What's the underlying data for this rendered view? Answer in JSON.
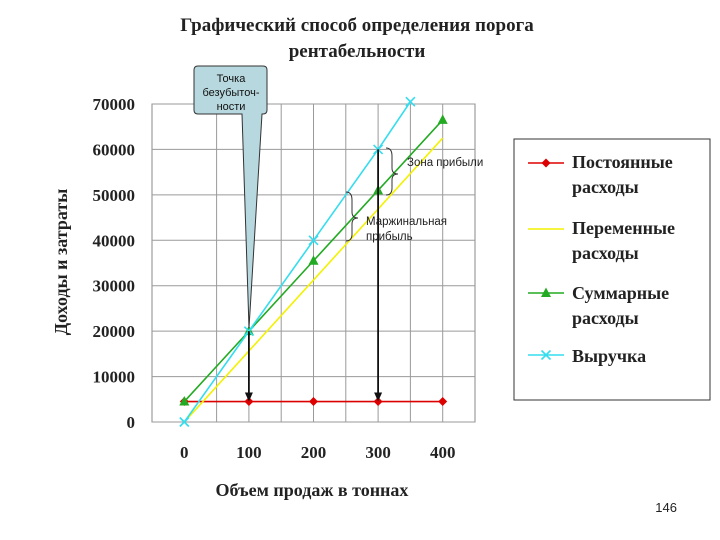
{
  "title_line1": "Графический способ определения порога",
  "title_line2": "рентабельности",
  "page_number": "146",
  "callout": {
    "line1": "Точка",
    "line2": "безубыточ-",
    "line3": "ности"
  },
  "annotations": {
    "profit_zone": "Зона прибыли",
    "margin_line1": "Маржинальная",
    "margin_line2": "прибыль"
  },
  "legend": [
    {
      "line1": "Постоянные",
      "line2": "расходы"
    },
    {
      "line1": "Переменные",
      "line2": "расходы"
    },
    {
      "line1": "Суммарные",
      "line2": "расходы"
    },
    {
      "line1": "Выручка",
      "line2": ""
    }
  ],
  "chart_data": {
    "type": "line",
    "xlabel": "Объем продаж в тоннах",
    "ylabel": "Доходы и затраты",
    "x": [
      0,
      100,
      200,
      300,
      400
    ],
    "x_ticks": [
      "0",
      "100",
      "200",
      "300",
      "400"
    ],
    "y_ticks": [
      "0",
      "10000",
      "20000",
      "30000",
      "40000",
      "50000",
      "60000",
      "70000"
    ],
    "xlim": [
      -50,
      450
    ],
    "ylim": [
      0,
      70000
    ],
    "grid": true,
    "legend_position": "right",
    "series": [
      {
        "name": "Постоянные расходы",
        "color": "#dd0000",
        "marker": "diamond",
        "points": [
          [
            0,
            4500
          ],
          [
            100,
            4500
          ],
          [
            200,
            4500
          ],
          [
            300,
            4500
          ],
          [
            400,
            4500
          ]
        ]
      },
      {
        "name": "Переменные расходы",
        "color": "#f2f200",
        "marker": "none",
        "points": [
          [
            0,
            0
          ],
          [
            400,
            62500
          ]
        ]
      },
      {
        "name": "Суммарные расходы",
        "color": "#22aa22",
        "marker": "triangle",
        "points": [
          [
            0,
            4500
          ],
          [
            100,
            20000
          ],
          [
            200,
            35500
          ],
          [
            300,
            51000
          ],
          [
            400,
            66500
          ]
        ]
      },
      {
        "name": "Выручка",
        "color": "#33ddee",
        "marker": "x",
        "points": [
          [
            0,
            0
          ],
          [
            100,
            20000
          ],
          [
            200,
            40000
          ],
          [
            300,
            60000
          ],
          [
            350,
            70500
          ]
        ]
      }
    ],
    "arrows_down_at_x": [
      100,
      300
    ]
  }
}
